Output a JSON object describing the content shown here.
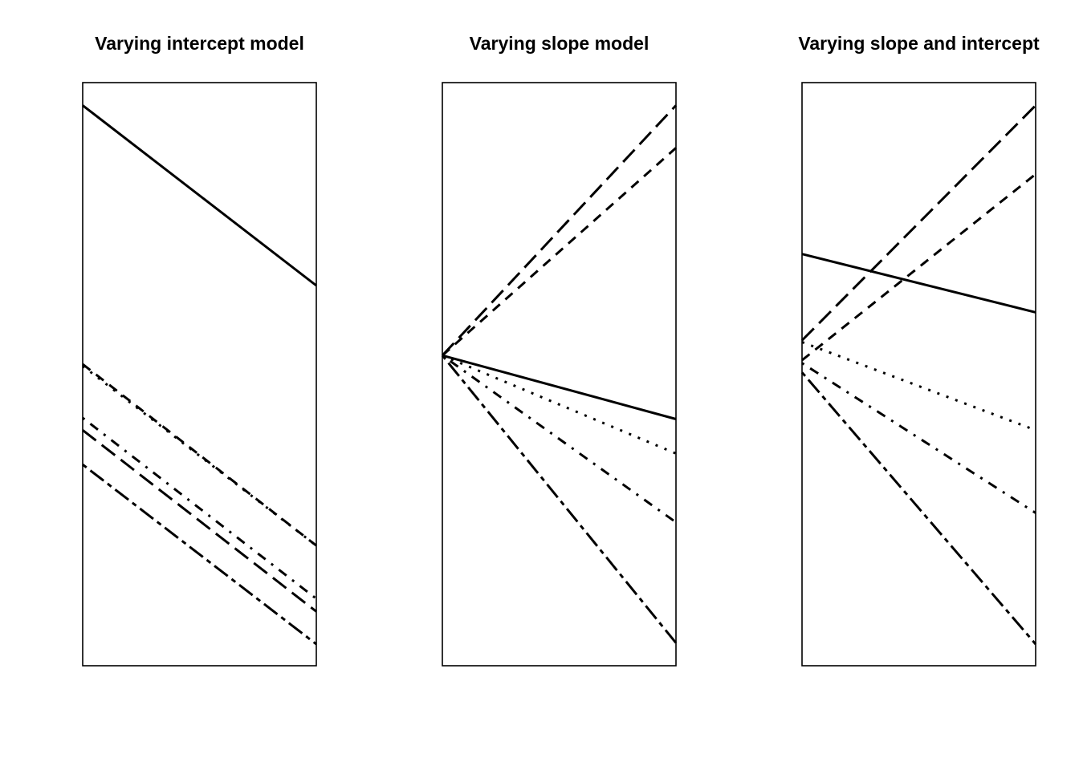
{
  "chart_data": [
    {
      "type": "line",
      "title": "Varying intercept model",
      "xlabel": "",
      "ylabel": "",
      "xlim": [
        0,
        1
      ],
      "ylim": [
        0,
        1
      ],
      "grid": false,
      "axes_visible": false,
      "series": [
        {
          "style": "solid",
          "x": [
            0,
            1
          ],
          "y": [
            0.961,
            0.652
          ]
        },
        {
          "style": "dashed",
          "x": [
            0,
            1
          ],
          "y": [
            0.517,
            0.206
          ]
        },
        {
          "style": "dotted",
          "x": [
            0,
            1
          ],
          "y": [
            0.514,
            0.206
          ]
        },
        {
          "style": "dotdash",
          "x": [
            0,
            1
          ],
          "y": [
            0.425,
            0.115
          ]
        },
        {
          "style": "longdash",
          "x": [
            0,
            1
          ],
          "y": [
            0.404,
            0.093
          ]
        },
        {
          "style": "twodash",
          "x": [
            0,
            1
          ],
          "y": [
            0.345,
            0.037
          ]
        }
      ]
    },
    {
      "type": "line",
      "title": "Varying slope model",
      "xlabel": "",
      "ylabel": "",
      "xlim": [
        0,
        1
      ],
      "ylim": [
        0,
        1
      ],
      "grid": false,
      "axes_visible": false,
      "series": [
        {
          "style": "solid",
          "x": [
            0,
            1
          ],
          "y": [
            0.532,
            0.423
          ]
        },
        {
          "style": "dashed",
          "x": [
            0,
            1
          ],
          "y": [
            0.532,
            0.888
          ]
        },
        {
          "style": "dotted",
          "x": [
            0,
            1
          ],
          "y": [
            0.532,
            0.364
          ]
        },
        {
          "style": "dotdash",
          "x": [
            0,
            1
          ],
          "y": [
            0.532,
            0.246
          ]
        },
        {
          "style": "longdash",
          "x": [
            0,
            1
          ],
          "y": [
            0.532,
            0.961
          ]
        },
        {
          "style": "twodash",
          "x": [
            0,
            1
          ],
          "y": [
            0.532,
            0.039
          ]
        }
      ]
    },
    {
      "type": "line",
      "title": "Varying slope and intercept",
      "xlabel": "",
      "ylabel": "",
      "xlim": [
        0,
        1
      ],
      "ylim": [
        0,
        1
      ],
      "grid": false,
      "axes_visible": false,
      "series": [
        {
          "style": "solid",
          "x": [
            0,
            1
          ],
          "y": [
            0.706,
            0.606
          ]
        },
        {
          "style": "dashed",
          "x": [
            0,
            1
          ],
          "y": [
            0.524,
            0.843
          ]
        },
        {
          "style": "dotted",
          "x": [
            0,
            1
          ],
          "y": [
            0.555,
            0.404
          ]
        },
        {
          "style": "dotdash",
          "x": [
            0,
            1
          ],
          "y": [
            0.519,
            0.262
          ]
        },
        {
          "style": "longdash",
          "x": [
            0,
            1
          ],
          "y": [
            0.558,
            0.961
          ]
        },
        {
          "style": "twodash",
          "x": [
            0,
            1
          ],
          "y": [
            0.503,
            0.037
          ]
        }
      ]
    }
  ]
}
